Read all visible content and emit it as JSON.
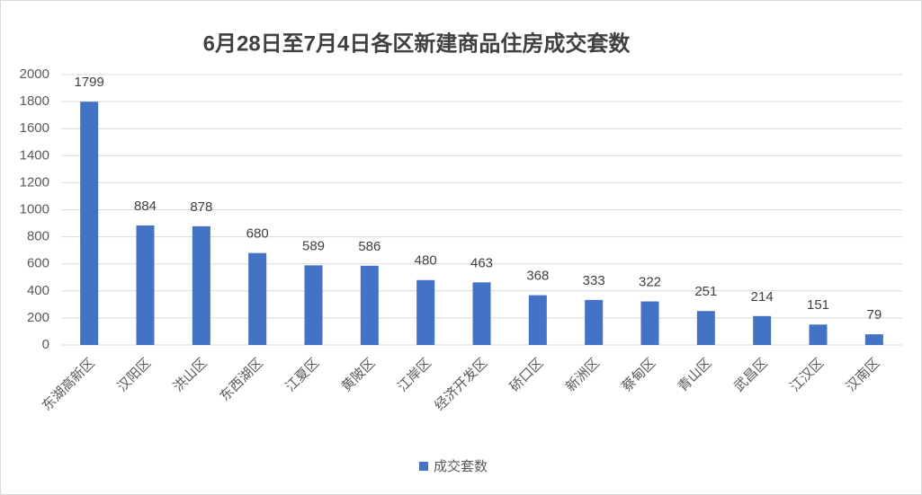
{
  "chart_data": {
    "type": "bar",
    "title": "6月28日至7月4日各区新建商品住房成交套数",
    "categories": [
      "东湖高新区",
      "汉阳区",
      "洪山区",
      "东西湖区",
      "江夏区",
      "黄陂区",
      "江岸区",
      "经济开发区",
      "硚口区",
      "新洲区",
      "蔡甸区",
      "青山区",
      "武昌区",
      "江汉区",
      "汉南区"
    ],
    "series": [
      {
        "name": "成交套数",
        "color": "#4472c4",
        "values": [
          1799,
          884,
          878,
          680,
          589,
          586,
          480,
          463,
          368,
          333,
          322,
          251,
          214,
          151,
          79
        ]
      }
    ],
    "ylim": [
      0,
      2000
    ],
    "yticks": [
      0,
      200,
      400,
      600,
      800,
      1000,
      1200,
      1400,
      1600,
      1800,
      2000
    ],
    "grid": true,
    "legend": "bottom"
  }
}
